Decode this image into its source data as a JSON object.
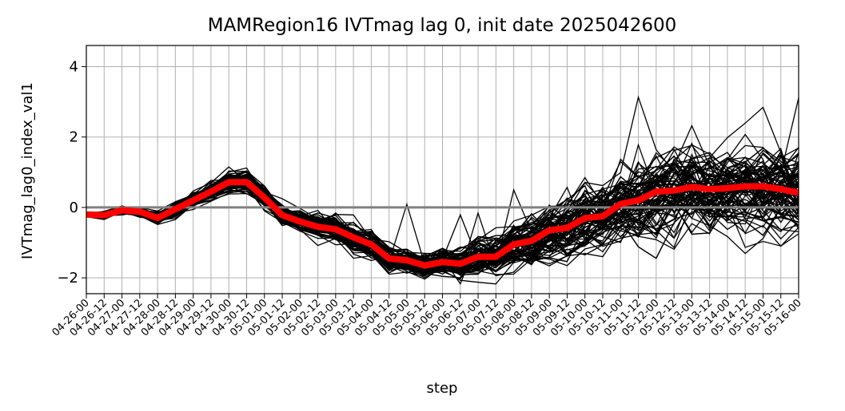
{
  "chart_data": {
    "type": "line",
    "title": "MAMRegion16 IVTmag lag 0, init date 2025042600",
    "xlabel": "step",
    "ylabel": "IVTmag_lag0_index_val1",
    "x": [
      "04-26-00",
      "04-26-12",
      "04-27-00",
      "04-27-12",
      "04-28-00",
      "04-28-12",
      "04-29-00",
      "04-29-12",
      "04-30-00",
      "04-30-12",
      "05-01-00",
      "05-01-12",
      "05-02-00",
      "05-02-12",
      "05-03-00",
      "05-03-12",
      "05-04-00",
      "05-04-12",
      "05-05-00",
      "05-05-12",
      "05-06-00",
      "05-06-12",
      "05-07-00",
      "05-07-12",
      "05-08-00",
      "05-08-12",
      "05-09-00",
      "05-09-12",
      "05-10-00",
      "05-10-12",
      "05-11-00",
      "05-11-12",
      "05-12-00",
      "05-12-12",
      "05-13-00",
      "05-13-12",
      "05-14-00",
      "05-14-12",
      "05-15-00",
      "05-15-12",
      "05-16-00"
    ],
    "ylim": [
      -2.45,
      4.6
    ],
    "yticks": [
      -2,
      0,
      2,
      4
    ],
    "grid": true,
    "reference_line": {
      "y": 0,
      "color": "#808080"
    },
    "mean_series": {
      "color": "#ff0000",
      "values": [
        -0.2,
        -0.22,
        -0.08,
        -0.12,
        -0.3,
        -0.05,
        0.2,
        0.45,
        0.72,
        0.72,
        0.28,
        -0.22,
        -0.4,
        -0.55,
        -0.62,
        -0.85,
        -1.05,
        -1.45,
        -1.5,
        -1.65,
        -1.55,
        -1.6,
        -1.4,
        -1.4,
        -1.05,
        -0.95,
        -0.65,
        -0.58,
        -0.3,
        -0.25,
        0.1,
        0.2,
        0.45,
        0.48,
        0.58,
        0.52,
        0.55,
        0.6,
        0.6,
        0.52,
        0.42
      ]
    },
    "ensemble": {
      "color": "#000000",
      "member_count": 100,
      "spread": [
        0.05,
        0.08,
        0.1,
        0.12,
        0.15,
        0.18,
        0.22,
        0.26,
        0.28,
        0.3,
        0.3,
        0.3,
        0.32,
        0.35,
        0.38,
        0.4,
        0.42,
        0.35,
        0.32,
        0.32,
        0.34,
        0.38,
        0.45,
        0.55,
        0.65,
        0.72,
        0.78,
        0.85,
        0.9,
        0.95,
        1.0,
        1.05,
        1.08,
        1.1,
        1.12,
        1.12,
        1.12,
        1.1,
        1.1,
        1.1,
        1.1
      ]
    }
  }
}
